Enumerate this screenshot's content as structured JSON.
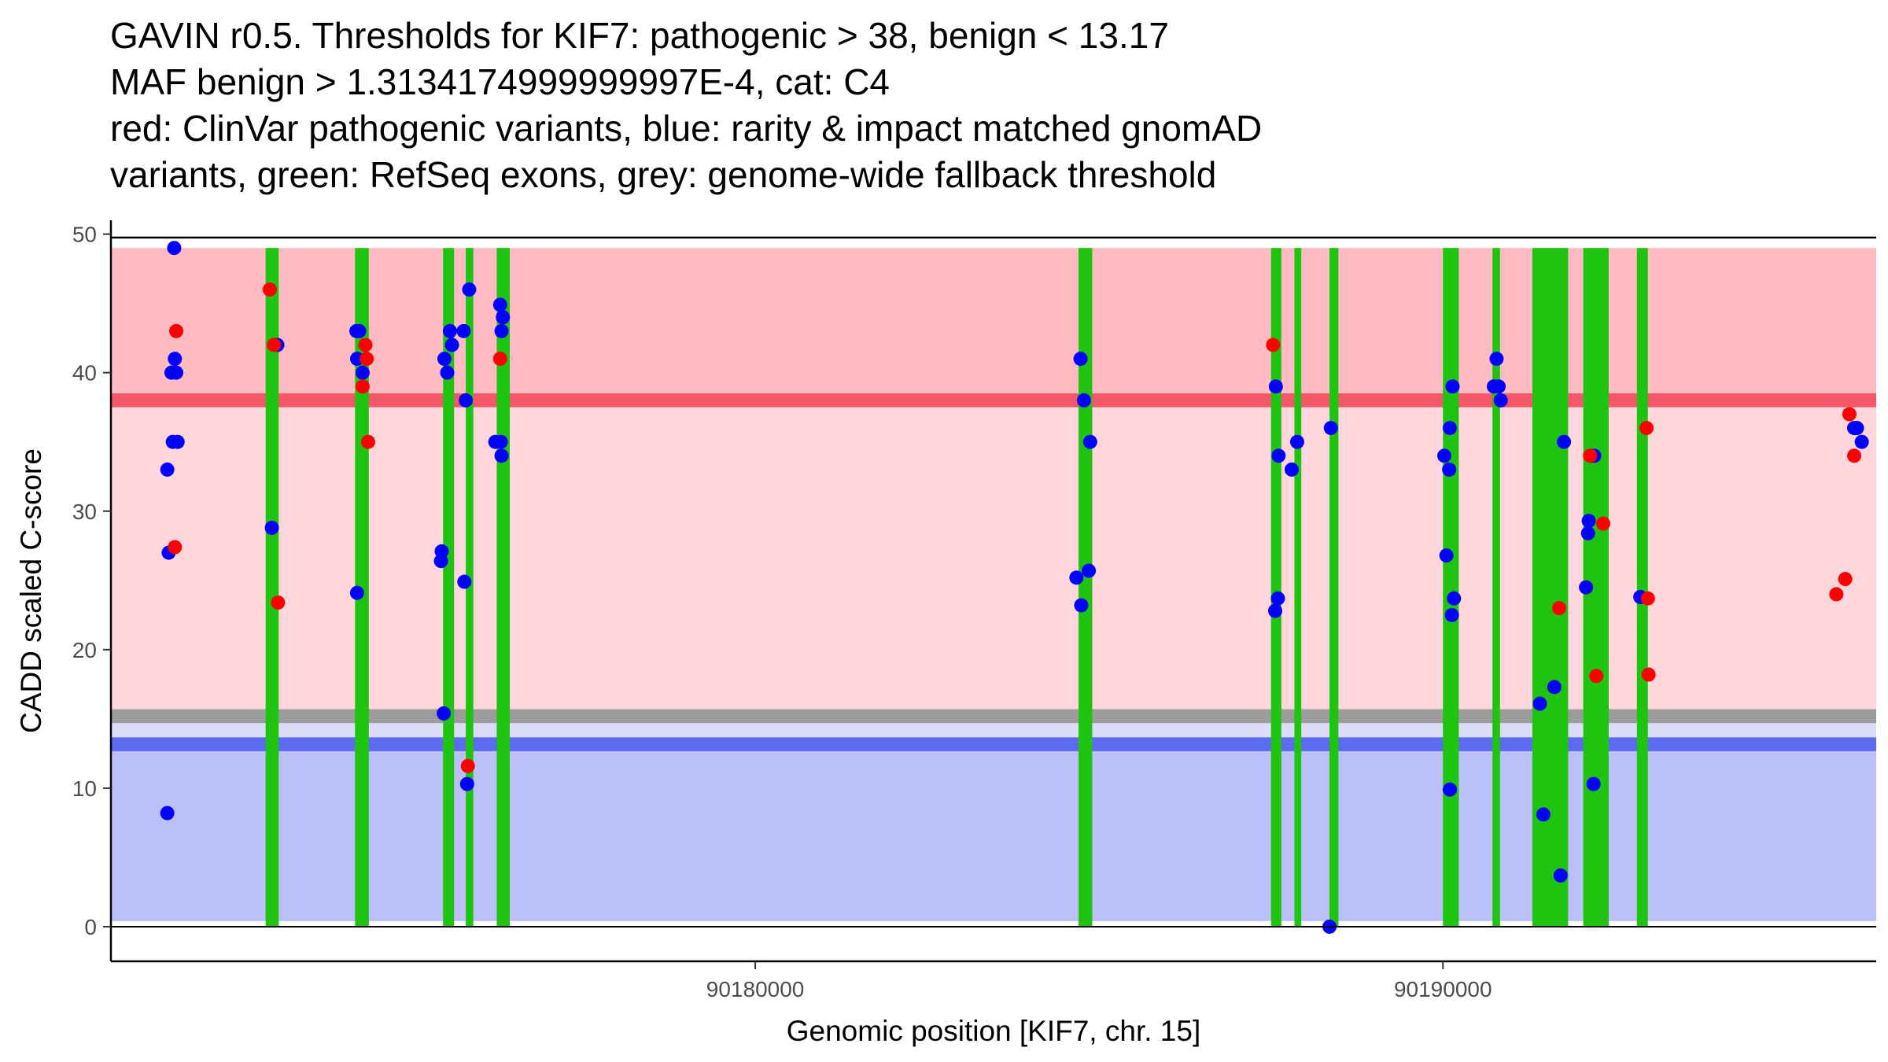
{
  "chart_data": {
    "type": "scatter",
    "title_lines": [
      "GAVIN r0.5. Thresholds for KIF7: pathogenic > 38, benign < 13.17",
      "MAF benign > 1.3134174999999997E-4, cat: C4",
      "red: ClinVar pathogenic variants, blue: rarity & impact matched gnomAD",
      "variants, green: RefSeq exons, grey: genome-wide fallback threshold"
    ],
    "xlabel": "Genomic position [KIF7, chr. 15]",
    "ylabel": "CADD scaled C-score",
    "xlim": [
      90170630,
      90196300
    ],
    "ylim": [
      -2.5,
      51
    ],
    "x_ticks": [
      90180000,
      90190000
    ],
    "x_tick_labels": [
      "90180000",
      "90190000"
    ],
    "y_ticks": [
      0,
      10,
      20,
      30,
      40,
      50
    ],
    "y_tick_labels": [
      "0",
      "10",
      "20",
      "30",
      "40",
      "50"
    ],
    "x_data_range": [
      90170630,
      90196300
    ],
    "colors": {
      "pathogenic_band": "#ffbbc1",
      "middle_band": "#ffd6db",
      "benign_band": "#bbbffa",
      "gap_band": "#dcdcf8",
      "pathogenic_line": "#f25868",
      "benign_line": "#5b6cf0",
      "fallback_line": "#9c9c9c",
      "exon": "#1ec40f",
      "clinvar": "#ff0000",
      "gnomad": "#0000ff"
    },
    "bands": [
      {
        "name": "pathogenic",
        "from": 38,
        "to": 49
      },
      {
        "name": "middle",
        "from": 14.8,
        "to": 38
      },
      {
        "name": "gap",
        "from": 13.17,
        "to": 14.8
      },
      {
        "name": "benign",
        "from": 0.4,
        "to": 13.17
      }
    ],
    "threshold_lines": [
      {
        "name": "pathogenic",
        "y": 38,
        "width": 1.0
      },
      {
        "name": "fallback",
        "y": 15.2,
        "width": 1.0
      },
      {
        "name": "benign",
        "y": 13.17,
        "width": 1.0
      }
    ],
    "exons": [
      [
        90172880,
        90173070
      ],
      [
        90174180,
        90174380
      ],
      [
        90175460,
        90175620
      ],
      [
        90175790,
        90175900
      ],
      [
        90176240,
        90176430
      ],
      [
        90184700,
        90184900
      ],
      [
        90187500,
        90187650
      ],
      [
        90187840,
        90187940
      ],
      [
        90188350,
        90188480
      ],
      [
        90190000,
        90190230
      ],
      [
        90190720,
        90190830
      ],
      [
        90191300,
        90191820
      ],
      [
        90192040,
        90192410
      ],
      [
        90192820,
        90192980
      ]
    ],
    "series": [
      {
        "name": "ClinVar pathogenic variants",
        "color": "#ff0000",
        "points": [
          [
            90171580,
            43
          ],
          [
            90171560,
            27.4
          ],
          [
            90172940,
            46
          ],
          [
            90173000,
            42
          ],
          [
            90173060,
            23.4
          ],
          [
            90174330,
            42
          ],
          [
            90174290,
            39
          ],
          [
            90174350,
            41
          ],
          [
            90174370,
            35
          ],
          [
            90175820,
            11.6
          ],
          [
            90176290,
            41
          ],
          [
            90187530,
            42
          ],
          [
            90191690,
            23
          ],
          [
            90192140,
            34
          ],
          [
            90192230,
            18.1
          ],
          [
            90192330,
            29.1
          ],
          [
            90192960,
            36
          ],
          [
            90192980,
            23.7
          ],
          [
            90192990,
            18.2
          ],
          [
            90195720,
            24
          ],
          [
            90195850,
            25.1
          ],
          [
            90195910,
            37
          ],
          [
            90195980,
            34
          ]
        ]
      },
      {
        "name": "gnomAD rarity & impact matched variants",
        "color": "#0000ff",
        "points": [
          [
            90171550,
            49
          ],
          [
            90171450,
            33
          ],
          [
            90171470,
            27
          ],
          [
            90171450,
            8.2
          ],
          [
            90171510,
            40
          ],
          [
            90171580,
            40
          ],
          [
            90171560,
            41
          ],
          [
            90171530,
            35
          ],
          [
            90171600,
            35
          ],
          [
            90172970,
            28.8
          ],
          [
            90173050,
            42
          ],
          [
            90174200,
            43
          ],
          [
            90174240,
            43
          ],
          [
            90174210,
            41
          ],
          [
            90174290,
            40
          ],
          [
            90174210,
            24.1
          ],
          [
            90175480,
            41
          ],
          [
            90175520,
            40
          ],
          [
            90175560,
            43
          ],
          [
            90175590,
            42
          ],
          [
            90175440,
            27.1
          ],
          [
            90175430,
            26.4
          ],
          [
            90175470,
            15.4
          ],
          [
            90175760,
            43
          ],
          [
            90175790,
            38
          ],
          [
            90175840,
            46
          ],
          [
            90175770,
            24.9
          ],
          [
            90175810,
            10.3
          ],
          [
            90176220,
            35
          ],
          [
            90176300,
            35
          ],
          [
            90176310,
            34
          ],
          [
            90176290,
            44.9
          ],
          [
            90176330,
            44
          ],
          [
            90176310,
            43
          ],
          [
            90184730,
            41
          ],
          [
            90184780,
            38
          ],
          [
            90184870,
            35
          ],
          [
            90184670,
            25.2
          ],
          [
            90184850,
            25.7
          ],
          [
            90184740,
            23.2
          ],
          [
            90187570,
            39
          ],
          [
            90187610,
            34
          ],
          [
            90187560,
            22.8
          ],
          [
            90187600,
            23.7
          ],
          [
            90187800,
            33
          ],
          [
            90187880,
            35
          ],
          [
            90188370,
            36
          ],
          [
            90188350,
            0
          ],
          [
            90190020,
            34
          ],
          [
            90190050,
            26.8
          ],
          [
            90190100,
            36
          ],
          [
            90190090,
            33
          ],
          [
            90190140,
            39
          ],
          [
            90190100,
            9.9
          ],
          [
            90190130,
            22.5
          ],
          [
            90190160,
            23.7
          ],
          [
            90190740,
            39
          ],
          [
            90190780,
            41
          ],
          [
            90190810,
            39
          ],
          [
            90190840,
            38
          ],
          [
            90191410,
            16.1
          ],
          [
            90191460,
            8.1
          ],
          [
            90191620,
            17.3
          ],
          [
            90191710,
            3.7
          ],
          [
            90191760,
            35
          ],
          [
            90192080,
            24.5
          ],
          [
            90192120,
            29.3
          ],
          [
            90192110,
            28.4
          ],
          [
            90192160,
            34
          ],
          [
            90192200,
            34
          ],
          [
            90192190,
            10.3
          ],
          [
            90192870,
            23.8
          ],
          [
            90195980,
            36
          ],
          [
            90196020,
            36
          ],
          [
            90196090,
            35
          ]
        ]
      }
    ]
  }
}
